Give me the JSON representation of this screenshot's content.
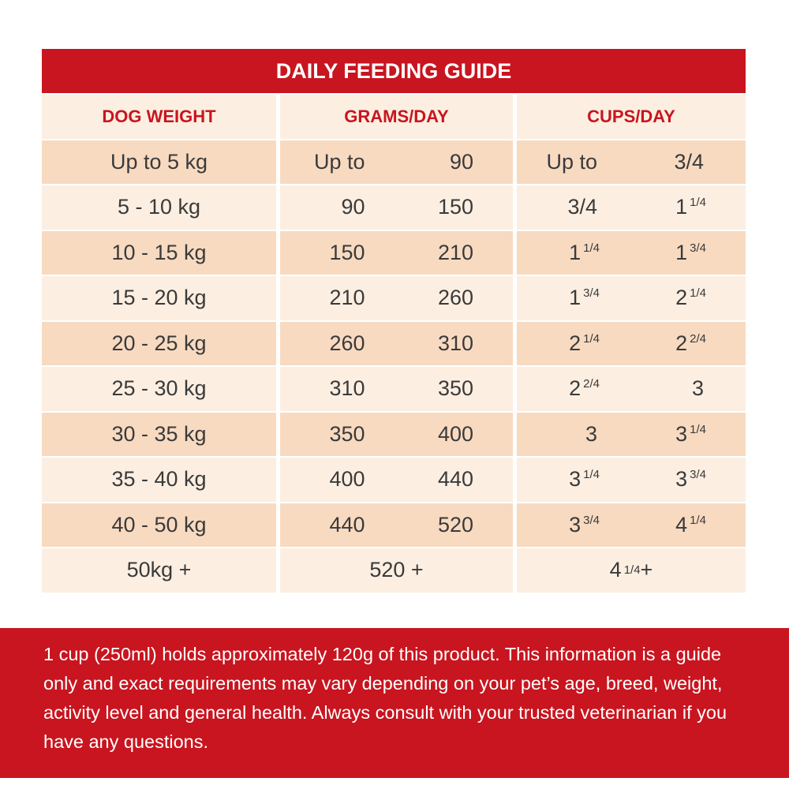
{
  "title": "DAILY FEEDING GUIDE",
  "colors": {
    "accent_red": "#c8151f",
    "row_light": "#fcefe2",
    "row_dark": "#f8dac1",
    "text": "#3a3a3a"
  },
  "columns": [
    "DOG WEIGHT",
    "GRAMS/DAY",
    "CUPS/DAY"
  ],
  "rows": [
    {
      "weight": "Up to 5 kg",
      "grams_from": "Up to",
      "grams_to": "90",
      "cups_from": "Up to",
      "cups_from_frac": "",
      "cups_to": "3/4",
      "cups_to_frac": ""
    },
    {
      "weight": "5 - 10 kg",
      "grams_from": "90",
      "grams_to": "150",
      "cups_from": "3/4",
      "cups_from_frac": "",
      "cups_to": "1",
      "cups_to_frac": "1/4"
    },
    {
      "weight": "10 - 15 kg",
      "grams_from": "150",
      "grams_to": "210",
      "cups_from": "1",
      "cups_from_frac": "1/4",
      "cups_to": "1",
      "cups_to_frac": "3/4"
    },
    {
      "weight": "15 - 20 kg",
      "grams_from": "210",
      "grams_to": "260",
      "cups_from": "1",
      "cups_from_frac": "3/4",
      "cups_to": "2",
      "cups_to_frac": "1/4"
    },
    {
      "weight": "20 - 25 kg",
      "grams_from": "260",
      "grams_to": "310",
      "cups_from": "2",
      "cups_from_frac": "1/4",
      "cups_to": "2",
      "cups_to_frac": "2/4"
    },
    {
      "weight": "25 - 30 kg",
      "grams_from": "310",
      "grams_to": "350",
      "cups_from": "2",
      "cups_from_frac": "2/4",
      "cups_to": "3",
      "cups_to_frac": ""
    },
    {
      "weight": "30 - 35 kg",
      "grams_from": "350",
      "grams_to": "400",
      "cups_from": "3",
      "cups_from_frac": "",
      "cups_to": "3",
      "cups_to_frac": "1/4"
    },
    {
      "weight": "35 - 40 kg",
      "grams_from": "400",
      "grams_to": "440",
      "cups_from": "3",
      "cups_from_frac": "1/4",
      "cups_to": "3",
      "cups_to_frac": "3/4"
    },
    {
      "weight": "40 - 50 kg",
      "grams_from": "440",
      "grams_to": "520",
      "cups_from": "3",
      "cups_from_frac": "3/4",
      "cups_to": "4",
      "cups_to_frac": "1/4"
    }
  ],
  "last_row": {
    "weight": "50kg +",
    "grams": "520 +",
    "cups": "4",
    "cups_frac": "1/4",
    "cups_suffix": "+"
  },
  "footer_text": "1 cup (250ml) holds approximately 120g of this product. This information is a guide only and exact requirements may vary depending on your pet’s age, breed, weight, activity level and general health. Always consult with your trusted veterinarian if you have any questions."
}
